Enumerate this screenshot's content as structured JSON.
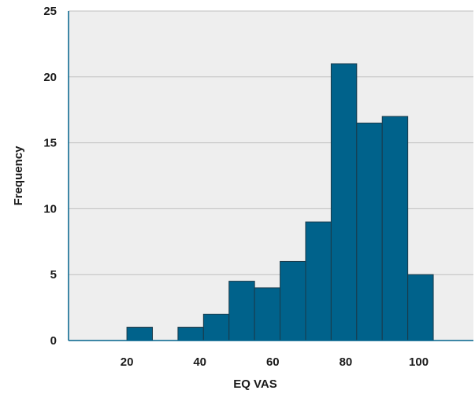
{
  "chart_data": {
    "type": "bar",
    "title": "",
    "xlabel": "EQ VAS",
    "ylabel": "Frequency",
    "bin_width": 7,
    "bins": [
      {
        "start": 20,
        "end": 27,
        "value": 1
      },
      {
        "start": 34,
        "end": 41,
        "value": 1
      },
      {
        "start": 41,
        "end": 48,
        "value": 2
      },
      {
        "start": 48,
        "end": 55,
        "value": 4.5
      },
      {
        "start": 55,
        "end": 62,
        "value": 4
      },
      {
        "start": 62,
        "end": 69,
        "value": 6
      },
      {
        "start": 69,
        "end": 76,
        "value": 9
      },
      {
        "start": 76,
        "end": 83,
        "value": 21
      },
      {
        "start": 83,
        "end": 90,
        "value": 16.5
      },
      {
        "start": 90,
        "end": 97,
        "value": 17
      },
      {
        "start": 97,
        "end": 104,
        "value": 5
      }
    ],
    "xlim": [
      4,
      115
    ],
    "ylim": [
      0,
      25
    ],
    "xticks": [
      20,
      40,
      60,
      80,
      100
    ],
    "yticks": [
      0,
      5,
      10,
      15,
      20,
      25
    ],
    "grid": "horizontal",
    "colors": {
      "bar_fill": "#00628B",
      "bar_edge": "#1a3a4a",
      "plot_background": "#EEEEEE",
      "gridline": "#bfbfbf",
      "axis": "#00628B"
    }
  }
}
